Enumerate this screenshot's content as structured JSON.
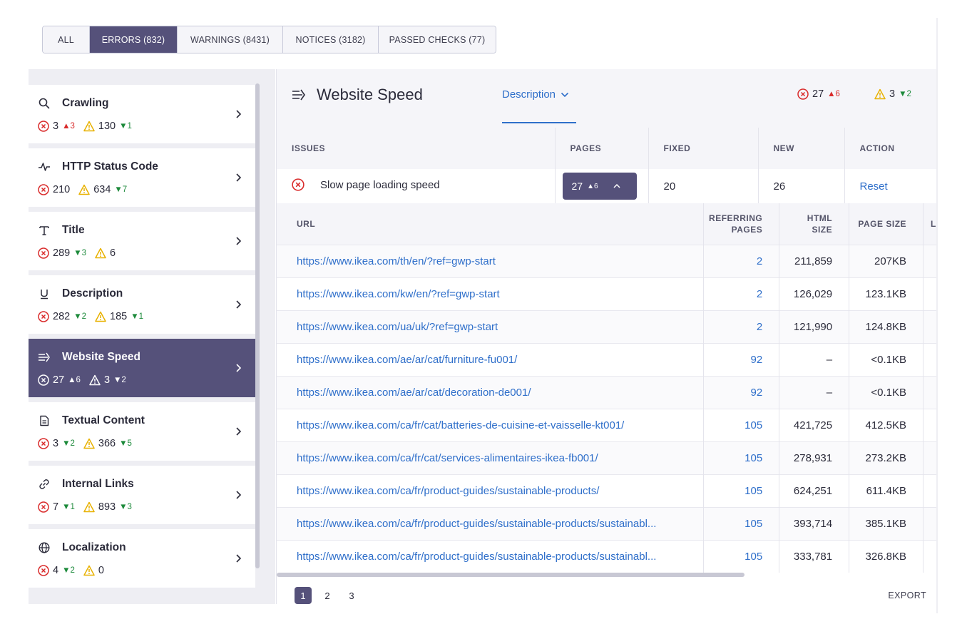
{
  "tabs": [
    {
      "label": "ALL",
      "active": false
    },
    {
      "label": "ERRORS (832)",
      "active": true
    },
    {
      "label": "WARNINGS (8431)",
      "active": false
    },
    {
      "label": "NOTICES (3182)",
      "active": false
    },
    {
      "label": "PASSED CHECKS (77)",
      "active": false
    }
  ],
  "sidebar": {
    "items": [
      {
        "title": "Crawling",
        "icon": "search-icon",
        "errors": "3",
        "errors_delta": "3",
        "errors_dir": "up",
        "warnings": "130",
        "warnings_delta": "1",
        "warnings_dir": "down"
      },
      {
        "title": "HTTP Status Code",
        "icon": "pulse-icon",
        "errors": "210",
        "errors_delta": "",
        "errors_dir": "",
        "warnings": "634",
        "warnings_delta": "7",
        "warnings_dir": "down"
      },
      {
        "title": "Title",
        "icon": "text-t-icon",
        "errors": "289",
        "errors_delta": "3",
        "errors_dir": "down",
        "warnings": "6",
        "warnings_delta": "",
        "warnings_dir": ""
      },
      {
        "title": "Description",
        "icon": "underline-icon",
        "errors": "282",
        "errors_delta": "2",
        "errors_dir": "down",
        "warnings": "185",
        "warnings_delta": "1",
        "warnings_dir": "down"
      },
      {
        "title": "Website Speed",
        "icon": "speed-icon",
        "errors": "27",
        "errors_delta": "6",
        "errors_dir": "up",
        "warnings": "3",
        "warnings_delta": "2",
        "warnings_dir": "down",
        "active": true
      },
      {
        "title": "Textual Content",
        "icon": "document-icon",
        "errors": "3",
        "errors_delta": "2",
        "errors_dir": "down",
        "warnings": "366",
        "warnings_delta": "5",
        "warnings_dir": "down"
      },
      {
        "title": "Internal Links",
        "icon": "link-icon",
        "errors": "7",
        "errors_delta": "1",
        "errors_dir": "down",
        "warnings": "893",
        "warnings_delta": "3",
        "warnings_dir": "down"
      },
      {
        "title": "Localization",
        "icon": "globe-icon",
        "errors": "4",
        "errors_delta": "2",
        "errors_dir": "down",
        "warnings": "0",
        "warnings_delta": "",
        "warnings_dir": ""
      }
    ]
  },
  "panel": {
    "title": "Website Speed",
    "icon": "speed-icon",
    "description_label": "Description",
    "errors": "27",
    "errors_delta": "6",
    "warnings": "3",
    "warnings_delta": "2"
  },
  "issues_table": {
    "headers": [
      "ISSUES",
      "PAGES",
      "FIXED",
      "NEW",
      "ACTION"
    ],
    "row": {
      "issue": "Slow page loading speed",
      "pages": "27",
      "pages_delta": "6",
      "fixed": "20",
      "new": "26",
      "action": "Reset"
    }
  },
  "url_table": {
    "headers": {
      "url": "URL",
      "referring_l1": "REFERRING",
      "referring_l2": "PAGES",
      "html_l1": "HTML",
      "html_l2": "SIZE",
      "page_size": "PAGE SIZE",
      "last": "L"
    },
    "rows": [
      {
        "url": "https://www.ikea.com/th/en/?ref=gwp-start",
        "referring": "2",
        "html_size": "211,859",
        "page_size": "207KB"
      },
      {
        "url": "https://www.ikea.com/kw/en/?ref=gwp-start",
        "referring": "2",
        "html_size": "126,029",
        "page_size": "123.1KB"
      },
      {
        "url": "https://www.ikea.com/ua/uk/?ref=gwp-start",
        "referring": "2",
        "html_size": "121,990",
        "page_size": "124.8KB"
      },
      {
        "url": "https://www.ikea.com/ae/ar/cat/furniture-fu001/",
        "referring": "92",
        "html_size": "–",
        "page_size": "<0.1KB"
      },
      {
        "url": "https://www.ikea.com/ae/ar/cat/decoration-de001/",
        "referring": "92",
        "html_size": "–",
        "page_size": "<0.1KB"
      },
      {
        "url": "https://www.ikea.com/ca/fr/cat/batteries-de-cuisine-et-vaisselle-kt001/",
        "referring": "105",
        "html_size": "421,725",
        "page_size": "412.5KB"
      },
      {
        "url": "https://www.ikea.com/ca/fr/cat/services-alimentaires-ikea-fb001/",
        "referring": "105",
        "html_size": "278,931",
        "page_size": "273.2KB"
      },
      {
        "url": "https://www.ikea.com/ca/fr/product-guides/sustainable-products/",
        "referring": "105",
        "html_size": "624,251",
        "page_size": "611.4KB"
      },
      {
        "url": "https://www.ikea.com/ca/fr/product-guides/sustainable-products/sustainabl...",
        "referring": "105",
        "html_size": "393,714",
        "page_size": "385.1KB"
      },
      {
        "url": "https://www.ikea.com/ca/fr/product-guides/sustainable-products/sustainabl...",
        "referring": "105",
        "html_size": "333,781",
        "page_size": "326.8KB"
      }
    ]
  },
  "pagination": {
    "pages": [
      "1",
      "2",
      "3"
    ],
    "current": "1"
  },
  "export_label": "EXPORT",
  "colors": {
    "accent": "#55517a",
    "link": "#2f6fca",
    "error": "#d92b2b",
    "warning": "#e8b100",
    "positive": "#1d8a3b"
  }
}
